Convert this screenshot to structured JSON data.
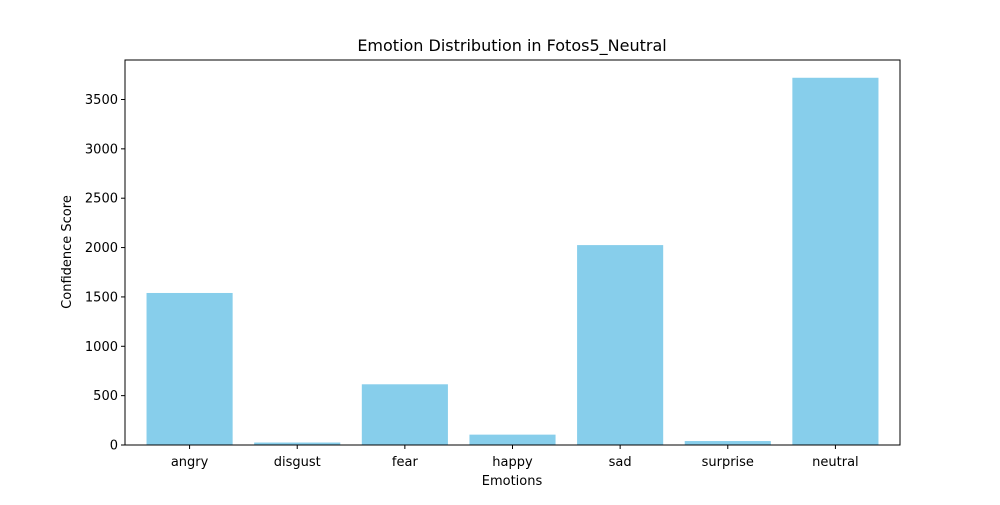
{
  "chart_data": {
    "type": "bar",
    "title": "Emotion Distribution in Fotos5_Neutral",
    "xlabel": "Emotions",
    "ylabel": "Confidence Score",
    "categories": [
      "angry",
      "disgust",
      "fear",
      "happy",
      "sad",
      "surprise",
      "neutral"
    ],
    "values": [
      1540,
      25,
      615,
      105,
      2025,
      40,
      3720
    ],
    "ylim": [
      0,
      3900
    ],
    "yticks": [
      0,
      500,
      1000,
      1500,
      2000,
      2500,
      3000,
      3500
    ],
    "bar_color": "#87ceeb",
    "grid": false,
    "legend": "none"
  }
}
